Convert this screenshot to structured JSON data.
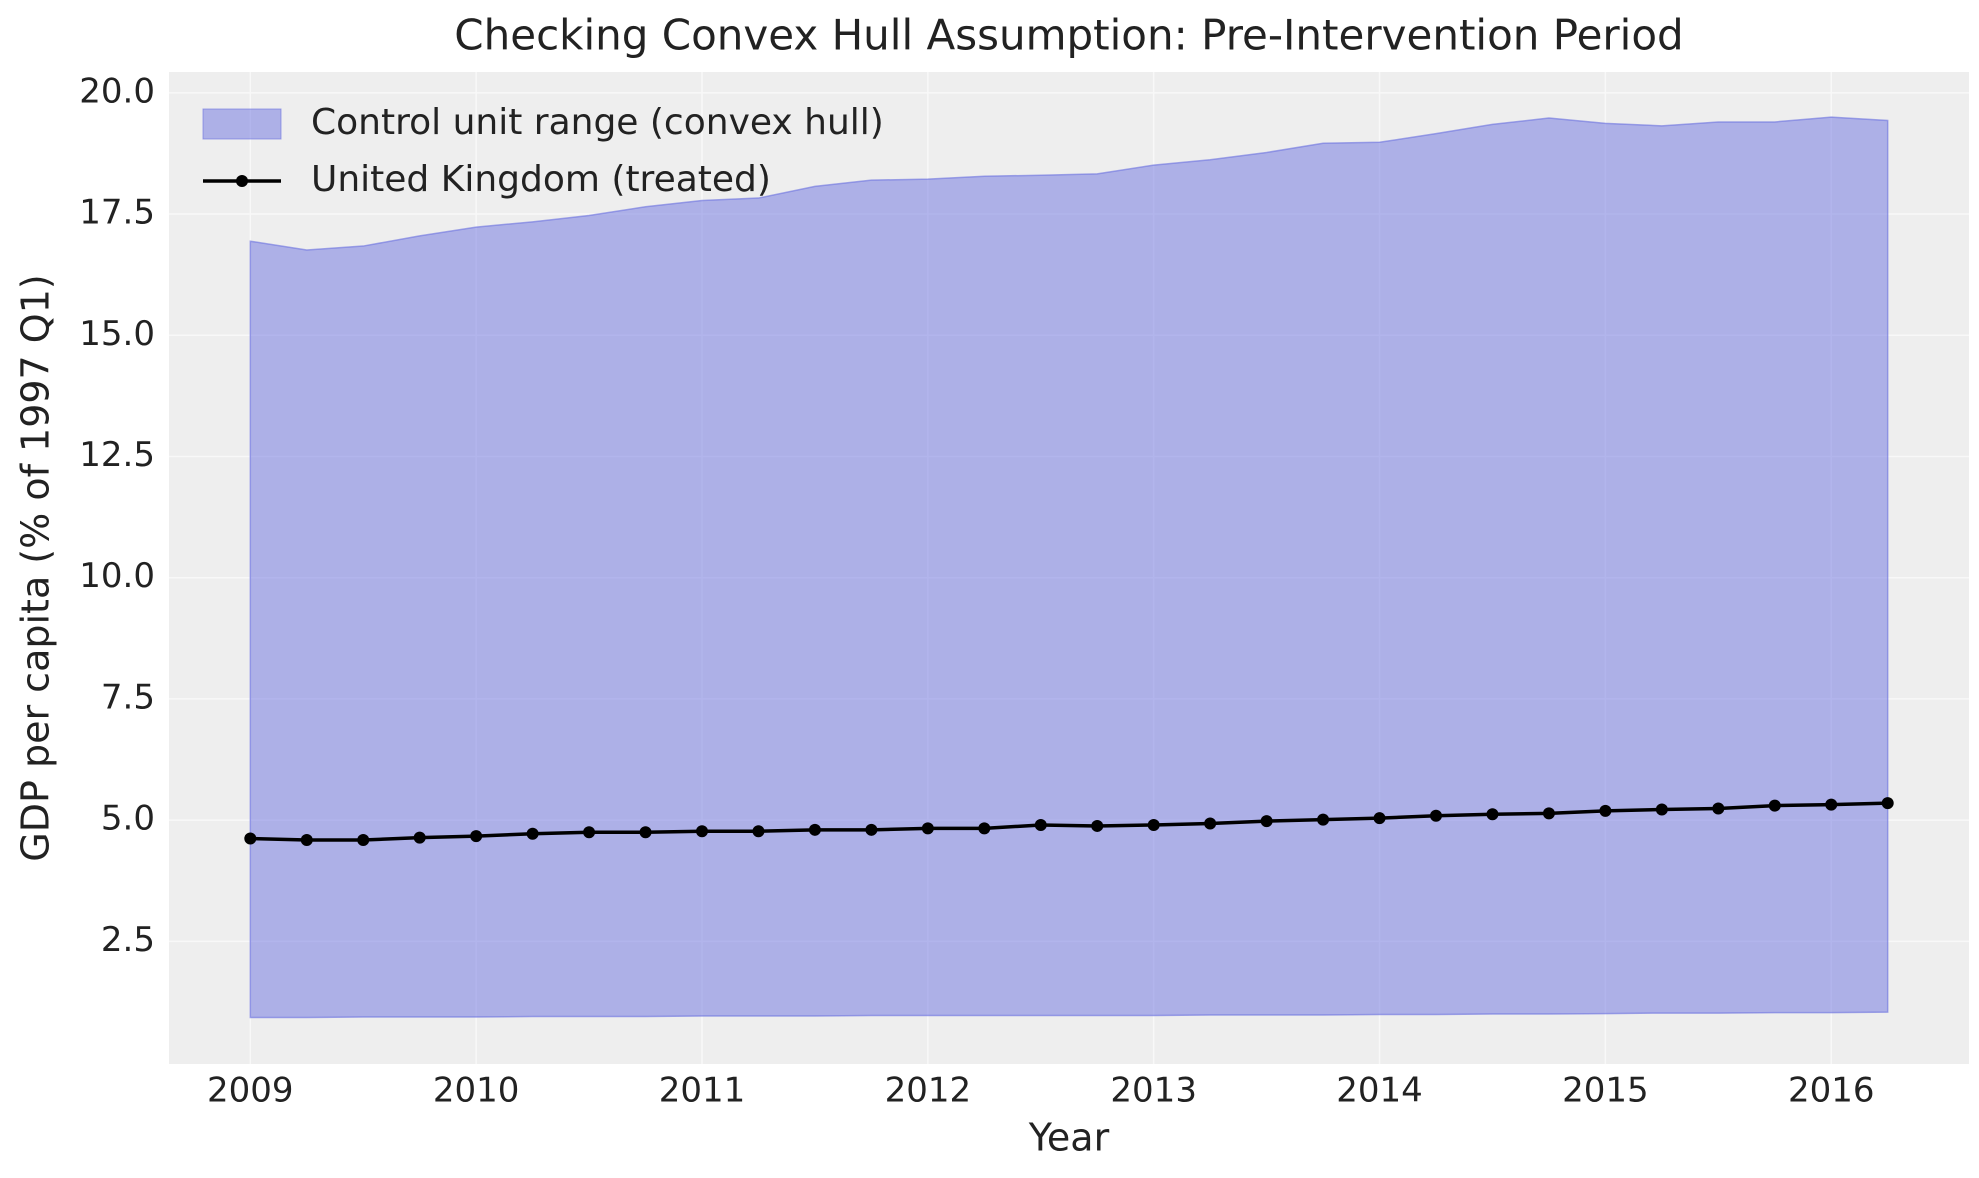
{
  "chart_data": {
    "type": "line",
    "title": "Checking Convex Hull Assumption: Pre-Intervention Period",
    "xlabel": "Year",
    "ylabel": "GDP per capita (% of 1997 Q1)",
    "x": [
      2009,
      2009.25,
      2009.5,
      2009.75,
      2010,
      2010.25,
      2010.5,
      2010.75,
      2011,
      2011.25,
      2011.5,
      2011.75,
      2012,
      2012.25,
      2012.5,
      2012.75,
      2013,
      2013.25,
      2013.5,
      2013.75,
      2014,
      2014.25,
      2014.5,
      2014.75,
      2015,
      2015.25,
      2015.5,
      2015.75,
      2016,
      2016.25
    ],
    "series": [
      {
        "name": "Control unit range (convex hull)",
        "color": "#6b72e0",
        "upper": [
          16.94,
          16.76,
          16.84,
          17.05,
          17.23,
          17.34,
          17.47,
          17.65,
          17.78,
          17.83,
          18.07,
          18.2,
          18.22,
          18.28,
          18.3,
          18.33,
          18.51,
          18.62,
          18.77,
          18.96,
          18.98,
          19.16,
          19.35,
          19.48,
          19.37,
          19.32,
          19.4,
          19.4,
          19.5,
          19.43
        ],
        "lower": [
          0.93,
          0.93,
          0.94,
          0.94,
          0.94,
          0.95,
          0.95,
          0.95,
          0.96,
          0.96,
          0.96,
          0.97,
          0.97,
          0.97,
          0.97,
          0.97,
          0.97,
          0.98,
          0.98,
          0.98,
          0.99,
          0.99,
          1.0,
          1.0,
          1.01,
          1.02,
          1.02,
          1.03,
          1.03,
          1.04
        ]
      },
      {
        "name": "United Kingdom (treated)",
        "color": "#000000",
        "values": [
          4.62,
          4.59,
          4.59,
          4.64,
          4.67,
          4.72,
          4.75,
          4.75,
          4.77,
          4.77,
          4.8,
          4.8,
          4.83,
          4.83,
          4.9,
          4.88,
          4.9,
          4.93,
          4.98,
          5.01,
          5.04,
          5.09,
          5.12,
          5.14,
          5.19,
          5.22,
          5.24,
          5.3,
          5.32,
          5.35
        ]
      }
    ],
    "xlim": [
      2008.64,
      2016.61
    ],
    "xticks": [
      2009,
      2010,
      2011,
      2012,
      2013,
      2014,
      2015,
      2016
    ],
    "ylim": [
      -0.03,
      20.43
    ],
    "yticks": [
      {
        "value": 2.5,
        "label": "2.5"
      },
      {
        "value": 5,
        "label": "5.0"
      },
      {
        "value": 7.5,
        "label": "7.5"
      },
      {
        "value": 10,
        "label": "10.0"
      },
      {
        "value": 12.5,
        "label": "12.5"
      },
      {
        "value": 15,
        "label": "15.0"
      },
      {
        "value": 17.5,
        "label": "17.5"
      },
      {
        "value": 20,
        "label": "20.0"
      }
    ],
    "grid": true,
    "legend": "upper left"
  }
}
